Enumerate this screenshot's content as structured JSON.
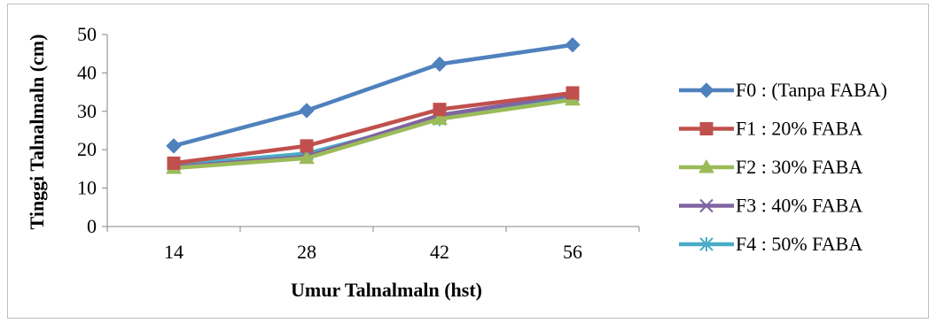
{
  "chart_data": {
    "type": "line",
    "title": "",
    "xlabel": "Umur Talnalmaln (hst)",
    "ylabel": "Tinggi Talnalmaln (cm)",
    "ylim": [
      0,
      50
    ],
    "y_ticks": [
      "0",
      "10",
      "20",
      "30",
      "40",
      "50"
    ],
    "categories": [
      "14",
      "28",
      "42",
      "56"
    ],
    "grid": false,
    "legend_position": "right",
    "series": [
      {
        "name": "F0 : (Tanpa FABA)",
        "values": [
          21,
          30.2,
          42.3,
          47.3
        ],
        "color": "#4F81BD",
        "marker": "diamond"
      },
      {
        "name": "F1 : 20% FABA",
        "values": [
          16.5,
          21,
          30.5,
          34.8
        ],
        "color": "#C0504D",
        "marker": "square"
      },
      {
        "name": "F2 : 30% FABA",
        "values": [
          15.2,
          17.8,
          28,
          33
        ],
        "color": "#9BBB59",
        "marker": "triangle"
      },
      {
        "name": "F3 : 40% FABA",
        "values": [
          15.5,
          18.2,
          29,
          34.3
        ],
        "color": "#8064A2",
        "marker": "x"
      },
      {
        "name": "F4 : 50% FABA",
        "values": [
          16,
          19,
          28,
          33.5
        ],
        "color": "#4BACC6",
        "marker": "asterisk"
      }
    ]
  }
}
